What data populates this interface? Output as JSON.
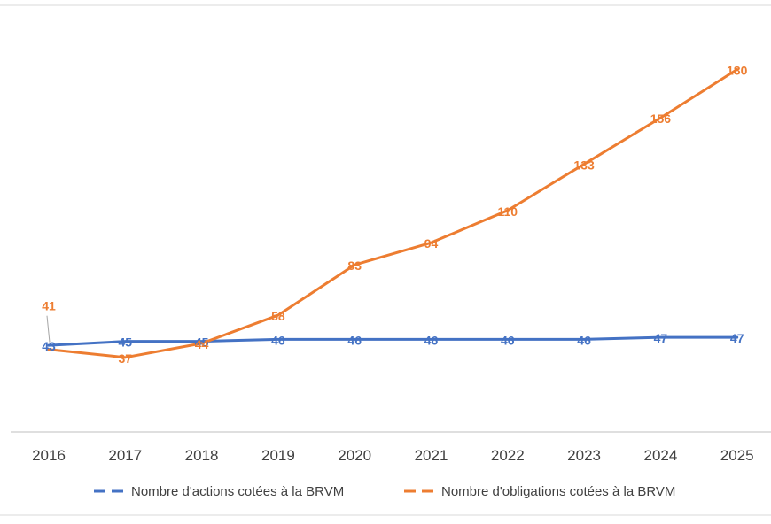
{
  "chart_data": {
    "type": "line",
    "title": "",
    "xlabel": "",
    "ylabel": "",
    "x": [
      "2016",
      "2017",
      "2018",
      "2019",
      "2020",
      "2021",
      "2022",
      "2023",
      "2024",
      "2025"
    ],
    "ylim": [
      0,
      200
    ],
    "grid": false,
    "legend_position": "bottom",
    "series": [
      {
        "name": "Nombre d'actions cotées à la BRVM",
        "color": "#4472c4",
        "line_style": "solid",
        "legend_style": "dashed",
        "values": [
          43,
          45,
          45,
          46,
          46,
          46,
          46,
          46,
          47,
          47
        ]
      },
      {
        "name": "Nombre d'obligations cotées à la BRVM",
        "color": "#ed7d31",
        "line_style": "solid",
        "legend_style": "dashed",
        "values": [
          41,
          37,
          44,
          58,
          83,
          94,
          110,
          133,
          156,
          180
        ]
      }
    ]
  }
}
